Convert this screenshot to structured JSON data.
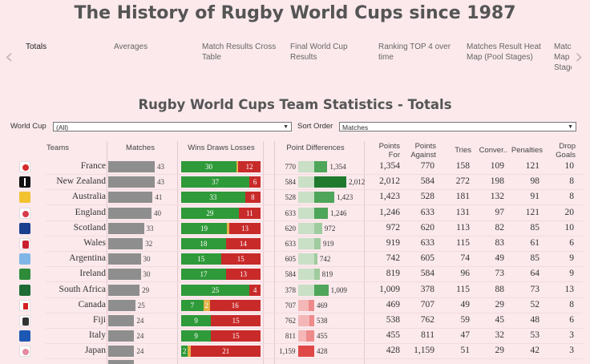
{
  "header": {
    "title": "The History of Rugby World Cups since 1987"
  },
  "nav": {
    "prev_icon": "‹",
    "next_icon": "›",
    "tabs": [
      {
        "label": "Totals",
        "active": true
      },
      {
        "label": "Averages",
        "active": false
      },
      {
        "label": "Match Results Cross Table",
        "active": false
      },
      {
        "label": "Final World Cup Results",
        "active": false
      },
      {
        "label": "Ranking TOP 4 over time",
        "active": false
      },
      {
        "label": "Matches Result Heat Map (Pool Stages)",
        "active": false
      },
      {
        "label": "Match Map Stage",
        "active": false
      }
    ]
  },
  "section_title": "Rugby World Cups Team Statistics - Totals",
  "filters": {
    "world_cup_label": "World Cup",
    "world_cup_value": "(All)",
    "sort_label": "Sort Order",
    "sort_value": "Matches"
  },
  "columns": {
    "teams": "Teams",
    "matches": "Matches",
    "wdl": "Wins Draws Losses",
    "point_diff": "Point Differences",
    "points_for": "Points For",
    "points_against": "Points Against",
    "tries": "Tries",
    "conversions": "Conver..",
    "penalties": "Penalties",
    "drop_goals": "Drop Goals"
  },
  "colors": {
    "win": "#2f9a3a",
    "draw": "#e3b247",
    "loss": "#c82a2a",
    "match_bar": "#8e8e8e",
    "accent": "#555555"
  },
  "rows": [
    {
      "team": "France",
      "flag": "fr-icon",
      "matches": 43,
      "wins": 30,
      "draws": 1,
      "losses": 12,
      "pa": 770,
      "pf": 1354,
      "tries": 158,
      "conv": 109,
      "pens": 121,
      "drops": 10
    },
    {
      "team": "New Zealand",
      "flag": "fern-icon",
      "matches": 43,
      "wins": 37,
      "draws": 0,
      "losses": 6,
      "pa": 584,
      "pf": 2012,
      "tries": 272,
      "conv": 198,
      "pens": 98,
      "drops": 8
    },
    {
      "team": "Australia",
      "flag": "wallaby-icon",
      "matches": 41,
      "wins": 33,
      "draws": 0,
      "losses": 8,
      "pa": 528,
      "pf": 1423,
      "tries": 181,
      "conv": 132,
      "pens": 91,
      "drops": 8
    },
    {
      "team": "England",
      "flag": "rose-icon",
      "matches": 40,
      "wins": 29,
      "draws": 0,
      "losses": 11,
      "pa": 633,
      "pf": 1246,
      "tries": 131,
      "conv": 97,
      "pens": 121,
      "drops": 20
    },
    {
      "team": "Scotland",
      "flag": "thistle-icon",
      "matches": 33,
      "wins": 19,
      "draws": 1,
      "losses": 13,
      "pa": 620,
      "pf": 972,
      "tries": 113,
      "conv": 82,
      "pens": 85,
      "drops": 10
    },
    {
      "team": "Wales",
      "flag": "feathers-icon",
      "matches": 32,
      "wins": 18,
      "draws": 0,
      "losses": 14,
      "pa": 633,
      "pf": 919,
      "tries": 115,
      "conv": 83,
      "pens": 61,
      "drops": 6
    },
    {
      "team": "Argentina",
      "flag": "puma-icon",
      "matches": 30,
      "wins": 15,
      "draws": 0,
      "losses": 15,
      "pa": 605,
      "pf": 742,
      "tries": 74,
      "conv": 49,
      "pens": 85,
      "drops": 9
    },
    {
      "team": "Ireland",
      "flag": "shamrock-icon",
      "matches": 30,
      "wins": 17,
      "draws": 0,
      "losses": 13,
      "pa": 584,
      "pf": 819,
      "tries": 96,
      "conv": 73,
      "pens": 64,
      "drops": 9
    },
    {
      "team": "South Africa",
      "flag": "springbok-icon",
      "matches": 29,
      "wins": 25,
      "draws": 0,
      "losses": 4,
      "pa": 378,
      "pf": 1009,
      "tries": 115,
      "conv": 88,
      "pens": 73,
      "drops": 13
    },
    {
      "team": "Canada",
      "flag": "maple-icon",
      "matches": 25,
      "wins": 7,
      "draws": 2,
      "losses": 16,
      "pa": 707,
      "pf": 469,
      "tries": 49,
      "conv": 29,
      "pens": 52,
      "drops": 8
    },
    {
      "team": "Fiji",
      "flag": "fiji-icon",
      "matches": 24,
      "wins": 9,
      "draws": 0,
      "losses": 15,
      "pa": 762,
      "pf": 538,
      "tries": 59,
      "conv": 45,
      "pens": 48,
      "drops": 6
    },
    {
      "team": "Italy",
      "flag": "italy-icon",
      "matches": 24,
      "wins": 9,
      "draws": 0,
      "losses": 15,
      "pa": 811,
      "pf": 455,
      "tries": 47,
      "conv": 32,
      "pens": 53,
      "drops": 3
    },
    {
      "team": "Japan",
      "flag": "japan-icon",
      "matches": 24,
      "wins": 2,
      "draws": 1,
      "losses": 21,
      "pa": 1159,
      "pf": 428,
      "tries": 51,
      "conv": 29,
      "pens": 42,
      "drops": 3
    }
  ]
}
